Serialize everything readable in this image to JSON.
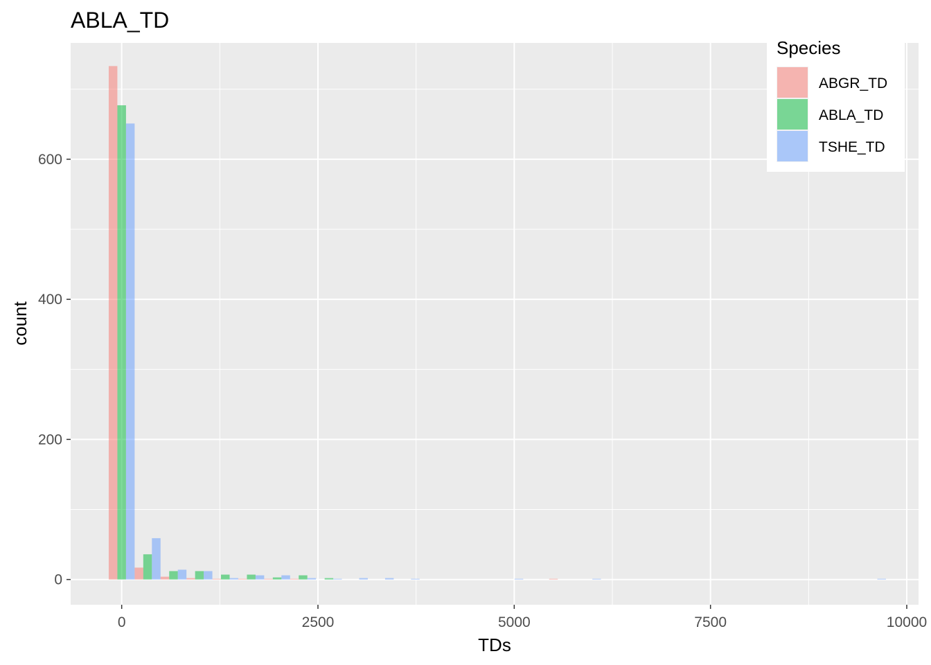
{
  "chart_data": {
    "type": "bar",
    "title": "ABLA_TD",
    "xlabel": "TDs",
    "ylabel": "count",
    "xlim": [
      -650,
      10150
    ],
    "ylim": [
      -36,
      766
    ],
    "x_ticks": [
      0,
      2500,
      5000,
      7500,
      10000
    ],
    "x_tick_labels": [
      "0",
      "2500",
      "5000",
      "7500",
      "10000"
    ],
    "y_ticks": [
      0,
      200,
      400,
      600
    ],
    "y_tick_labels": [
      "0",
      "200",
      "400",
      "600"
    ],
    "grid": true,
    "legend_position": "top-right",
    "legend_title": "Species",
    "bin_width": 330,
    "dodge_width": 110,
    "series": [
      {
        "name": "ABGR_TD",
        "color": "#F8766D",
        "points": [
          {
            "x": -110,
            "y": 733
          },
          {
            "x": 220,
            "y": 17
          },
          {
            "x": 550,
            "y": 4
          },
          {
            "x": 880,
            "y": 2
          },
          {
            "x": 1210,
            "y": 1
          },
          {
            "x": 1540,
            "y": 1
          },
          {
            "x": 1870,
            "y": 1
          },
          {
            "x": 2200,
            "y": 1
          },
          {
            "x": 5500,
            "y": 1
          }
        ]
      },
      {
        "name": "ABLA_TD",
        "color": "#00BA38",
        "points": [
          {
            "x": 0,
            "y": 677
          },
          {
            "x": 330,
            "y": 36
          },
          {
            "x": 660,
            "y": 12
          },
          {
            "x": 990,
            "y": 12
          },
          {
            "x": 1320,
            "y": 7
          },
          {
            "x": 1650,
            "y": 7
          },
          {
            "x": 1980,
            "y": 3
          },
          {
            "x": 2310,
            "y": 6
          },
          {
            "x": 2640,
            "y": 2
          }
        ]
      },
      {
        "name": "TSHE_TD",
        "color": "#619CFF",
        "points": [
          {
            "x": 110,
            "y": 651
          },
          {
            "x": 440,
            "y": 59
          },
          {
            "x": 770,
            "y": 14
          },
          {
            "x": 1100,
            "y": 12
          },
          {
            "x": 1430,
            "y": 2
          },
          {
            "x": 1760,
            "y": 6
          },
          {
            "x": 2090,
            "y": 6
          },
          {
            "x": 2420,
            "y": 2
          },
          {
            "x": 2750,
            "y": 1
          },
          {
            "x": 3080,
            "y": 2
          },
          {
            "x": 3410,
            "y": 2
          },
          {
            "x": 3740,
            "y": 1
          },
          {
            "x": 5060,
            "y": 1
          },
          {
            "x": 6050,
            "y": 1
          },
          {
            "x": 9680,
            "y": 1
          }
        ]
      }
    ]
  }
}
